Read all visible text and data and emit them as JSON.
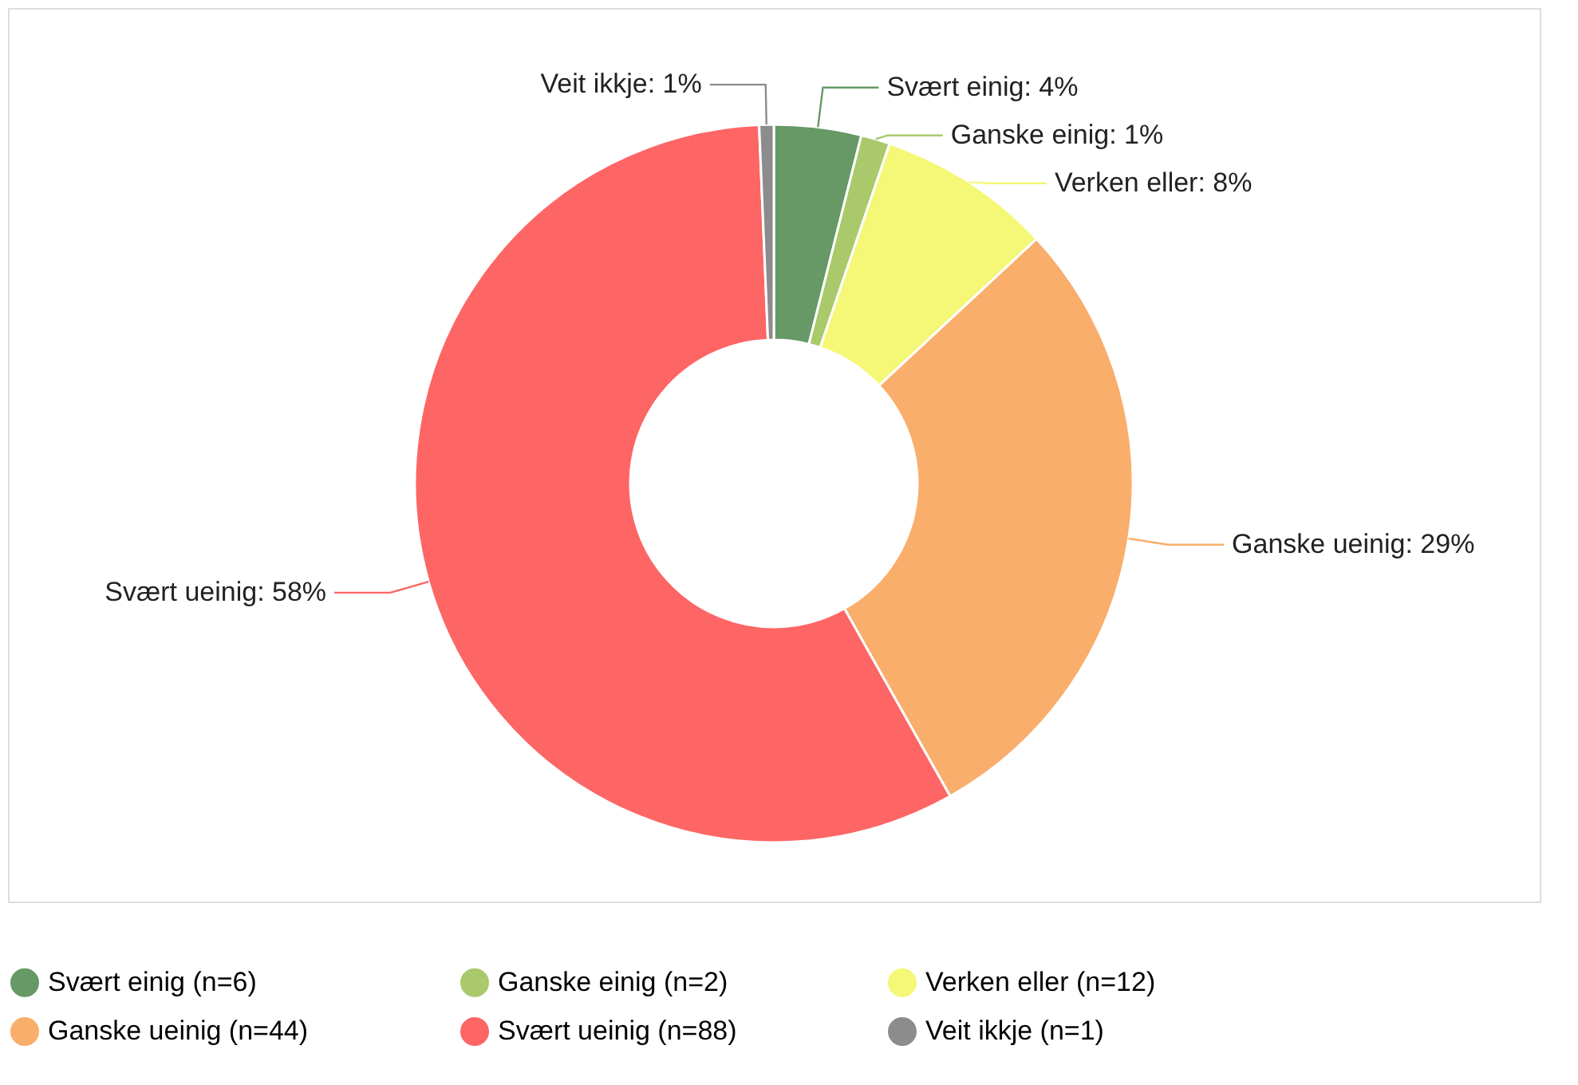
{
  "chart_data": {
    "type": "donut",
    "categories": [
      "Svært einig (n=6)",
      "Ganske einig (n=2)",
      "Verken eller (n=12)",
      "Ganske ueinig (n=44)",
      "Svært ueinig (n=88)",
      "Veit ikkje (n=1)"
    ],
    "values": [
      6,
      2,
      12,
      44,
      88,
      1
    ],
    "colors": [
      "#669966",
      "#a9c96b",
      "#f5f776",
      "#f9ae6b",
      "#fe6565",
      "#8c8c8c"
    ],
    "annotations": [
      "Svært einig: 4%",
      "Ganske einig: 1%",
      "Verken eller: 8%",
      "Ganske ueinig: 29%",
      "Svært ueinig: 58%",
      "Veit ikkje: 1%"
    ],
    "legend": "bottom"
  }
}
